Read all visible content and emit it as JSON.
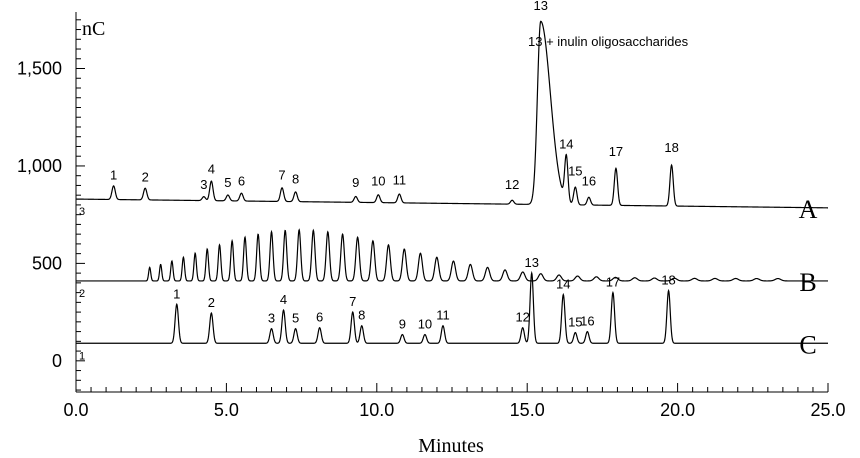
{
  "chart_data": {
    "type": "line",
    "title": "",
    "xlabel": "Minutes",
    "ylabel": "nC",
    "xlim": [
      0,
      25
    ],
    "ylim": [
      -160,
      1790
    ],
    "x_ticks": [
      "0.0",
      "5.0",
      "10.0",
      "15.0",
      "20.0",
      "25.0"
    ],
    "x_tick_values": [
      0,
      5,
      10,
      15,
      20,
      25
    ],
    "y_ticks": [
      "0",
      "500",
      "1,000",
      "1,500"
    ],
    "y_tick_values": [
      0,
      500,
      1000,
      1500
    ],
    "grid": false,
    "annotation": "13 + inulin oligosaccharides",
    "series": [
      {
        "name": "A",
        "trace_number": "3",
        "baseline": 830,
        "baseline_end": 785,
        "peaks": [
          {
            "label": "1",
            "t": 1.25,
            "h": 70
          },
          {
            "label": "2",
            "t": 2.3,
            "h": 60
          },
          {
            "label": "3",
            "t": 4.25,
            "h": 20
          },
          {
            "label": "4",
            "t": 4.5,
            "h": 100
          },
          {
            "label": "5",
            "t": 5.05,
            "h": 30
          },
          {
            "label": "6",
            "t": 5.5,
            "h": 40
          },
          {
            "label": "7",
            "t": 6.85,
            "h": 70
          },
          {
            "label": "8",
            "t": 7.3,
            "h": 50
          },
          {
            "label": "9",
            "t": 9.3,
            "h": 30
          },
          {
            "label": "10",
            "t": 10.05,
            "h": 40
          },
          {
            "label": "11",
            "t": 10.75,
            "h": 45
          },
          {
            "label": "12",
            "t": 14.5,
            "h": 20
          },
          {
            "label": "13",
            "t": 15.45,
            "h": 940
          },
          {
            "label": "14",
            "t": 16.3,
            "h": 230
          },
          {
            "label": "15",
            "t": 16.6,
            "h": 90
          },
          {
            "label": "16",
            "t": 17.05,
            "h": 40
          },
          {
            "label": "17",
            "t": 17.95,
            "h": 190
          },
          {
            "label": "18",
            "t": 19.8,
            "h": 210
          }
        ]
      },
      {
        "name": "B",
        "trace_number": "2",
        "baseline": 410,
        "baseline_end": 410,
        "peaks": []
      },
      {
        "name": "C",
        "trace_number": "1",
        "baseline": 90,
        "baseline_end": 90,
        "peaks": [
          {
            "label": "1",
            "t": 3.35,
            "h": 200
          },
          {
            "label": "2",
            "t": 4.5,
            "h": 155
          },
          {
            "label": "3",
            "t": 6.5,
            "h": 75
          },
          {
            "label": "4",
            "t": 6.9,
            "h": 170
          },
          {
            "label": "5",
            "t": 7.3,
            "h": 75
          },
          {
            "label": "6",
            "t": 8.1,
            "h": 80
          },
          {
            "label": "7",
            "t": 9.2,
            "h": 160
          },
          {
            "label": "8",
            "t": 9.5,
            "h": 90
          },
          {
            "label": "9",
            "t": 10.85,
            "h": 45
          },
          {
            "label": "10",
            "t": 11.6,
            "h": 45
          },
          {
            "label": "11",
            "t": 12.2,
            "h": 90
          },
          {
            "label": "12",
            "t": 14.85,
            "h": 80
          },
          {
            "label": "13",
            "t": 15.15,
            "h": 360
          },
          {
            "label": "14",
            "t": 16.2,
            "h": 250
          },
          {
            "label": "15",
            "t": 16.6,
            "h": 55
          },
          {
            "label": "16",
            "t": 17.0,
            "h": 60
          },
          {
            "label": "17",
            "t": 17.85,
            "h": 260
          },
          {
            "label": "18",
            "t": 19.7,
            "h": 270
          }
        ]
      }
    ]
  }
}
